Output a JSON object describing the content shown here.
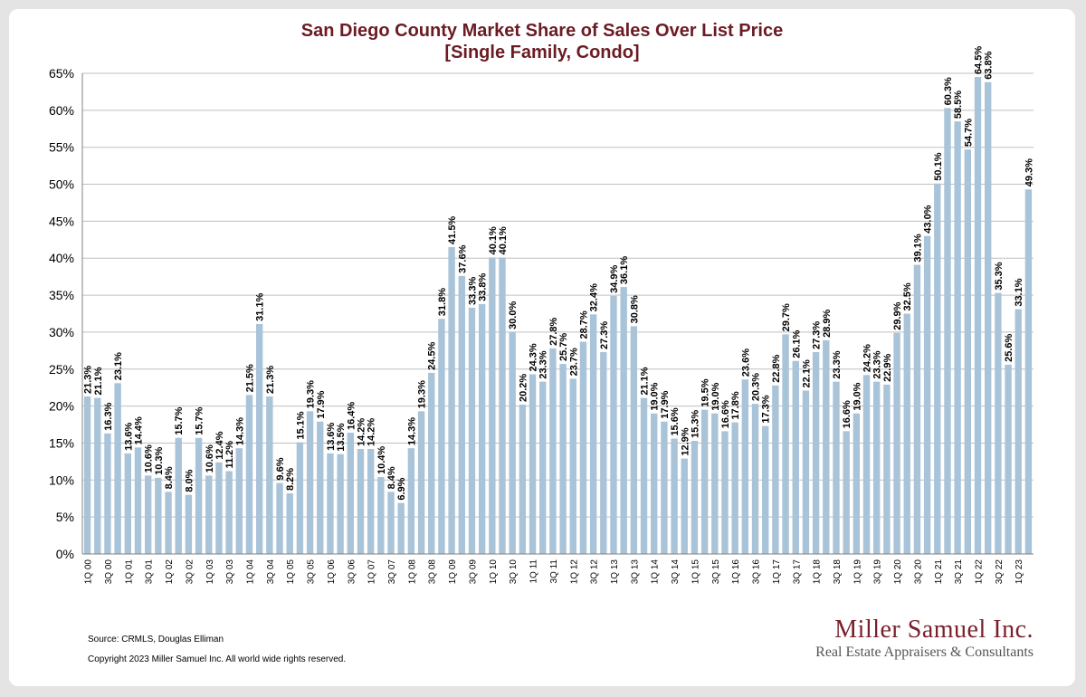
{
  "title": {
    "line1": "San Diego County Market Share of Sales Over List Price",
    "line2": "[Single Family, Condo]"
  },
  "footer": {
    "source": "Source: CRMLS, Douglas Elliman",
    "copyright": "Copyright 2023 Miller Samuel Inc.  All world wide rights reserved."
  },
  "brand": {
    "name": "Miller Samuel Inc.",
    "tagline": "Real Estate Appraisers & Consultants"
  },
  "colors": {
    "bar": "#a9c3d9",
    "title": "#6b1b23",
    "grid": "#bfbfbf"
  },
  "chart_data": {
    "type": "bar",
    "title": "San Diego County Market Share of Sales Over List Price [Single Family, Condo]",
    "ylim": [
      0,
      65
    ],
    "y_ticks": [
      "0%",
      "5%",
      "10%",
      "15%",
      "20%",
      "25%",
      "30%",
      "35%",
      "40%",
      "45%",
      "50%",
      "55%",
      "60%",
      "65%"
    ],
    "grid": true,
    "categories": [
      "1Q 00",
      "2Q 00",
      "3Q 00",
      "4Q 00",
      "1Q 01",
      "2Q 01",
      "3Q 01",
      "4Q 01",
      "1Q 02",
      "2Q 02",
      "3Q 02",
      "4Q 02",
      "1Q 03",
      "2Q 03",
      "3Q 03",
      "4Q 03",
      "1Q 04",
      "2Q 04",
      "3Q 04",
      "4Q 04",
      "1Q 05",
      "2Q 05",
      "3Q 05",
      "4Q 05",
      "1Q 06",
      "2Q 06",
      "3Q 06",
      "4Q 06",
      "1Q 07",
      "2Q 07",
      "3Q 07",
      "4Q 07",
      "1Q 08",
      "2Q 08",
      "3Q 08",
      "4Q 08",
      "1Q 09",
      "2Q 09",
      "3Q 09",
      "4Q 09",
      "1Q 10",
      "2Q 10",
      "3Q 10",
      "4Q 10",
      "1Q 11",
      "2Q 11",
      "3Q 11",
      "4Q 11",
      "1Q 12",
      "2Q 12",
      "3Q 12",
      "4Q 12",
      "1Q 13",
      "2Q 13",
      "3Q 13",
      "4Q 13",
      "1Q 14",
      "2Q 14",
      "3Q 14",
      "4Q 14",
      "1Q 15",
      "2Q 15",
      "3Q 15",
      "4Q 15",
      "1Q 16",
      "2Q 16",
      "3Q 16",
      "4Q 16",
      "1Q 17",
      "2Q 17",
      "3Q 17",
      "4Q 17",
      "1Q 18",
      "2Q 18",
      "3Q 18",
      "4Q 18",
      "1Q 19",
      "2Q 19",
      "3Q 19",
      "4Q 19",
      "1Q 20",
      "2Q 20",
      "3Q 20",
      "4Q 20",
      "1Q 21",
      "2Q 21",
      "3Q 21",
      "4Q 21",
      "1Q 22",
      "2Q 22",
      "3Q 22",
      "4Q 22",
      "1Q 23",
      "2Q 23"
    ],
    "values": [
      21.3,
      21.1,
      16.3,
      23.1,
      13.6,
      14.4,
      10.6,
      10.3,
      8.4,
      15.7,
      8.0,
      15.7,
      10.6,
      12.4,
      11.2,
      14.3,
      21.5,
      31.1,
      21.3,
      9.6,
      8.2,
      15.1,
      19.3,
      17.9,
      13.6,
      13.5,
      16.4,
      14.2,
      14.2,
      10.4,
      8.4,
      6.9,
      14.3,
      19.3,
      24.5,
      31.8,
      41.5,
      37.6,
      33.3,
      33.8,
      40.1,
      40.1,
      30.0,
      20.2,
      24.3,
      23.3,
      27.8,
      25.7,
      23.7,
      28.7,
      32.4,
      27.3,
      34.9,
      36.1,
      30.8,
      21.1,
      19.0,
      17.9,
      15.6,
      12.9,
      15.3,
      19.5,
      19.0,
      16.6,
      17.8,
      23.6,
      20.3,
      17.3,
      22.8,
      29.7,
      26.1,
      22.1,
      27.3,
      28.9,
      23.3,
      16.6,
      19.0,
      24.2,
      23.3,
      22.9,
      29.9,
      32.5,
      39.1,
      43.0,
      50.1,
      60.3,
      58.5,
      54.7,
      64.5,
      63.8,
      35.3,
      25.6,
      33.1,
      49.3
    ],
    "labels": [
      "21.3%",
      "21.1%",
      "16.3%",
      "23.1%",
      "13.6%",
      "14.4%",
      "10.6%",
      "10.3%",
      "8.4%",
      "15.7%",
      "8.0%",
      "15.7%",
      "10.6%",
      "12.4%",
      "11.2%",
      "14.3%",
      "21.5%",
      "31.1%",
      "21.3%",
      "9.6%",
      "8.2%",
      "15.1%",
      "19.3%",
      "17.9%",
      "13.6%",
      "13.5%",
      "16.4%",
      "14.2%",
      "14.2%",
      "10.4%",
      "8.4%",
      "6.9%",
      "14.3%",
      "19.3%",
      "24.5%",
      "31.8%",
      "41.5%",
      "37.6%",
      "33.3%",
      "33.8%",
      "40.1%",
      "40.1%",
      "30.0%",
      "20.2%",
      "24.3%",
      "23.3%",
      "27.8%",
      "25.7%",
      "23.7%",
      "28.7%",
      "32.4%",
      "27.3%",
      "34.9%",
      "36.1%",
      "30.8%",
      "21.1%",
      "19.0%",
      "17.9%",
      "15.6%",
      "12.9%",
      "15.3%",
      "19.5%",
      "19.0%",
      "16.6%",
      "17.8%",
      "23.6%",
      "20.3%",
      "17.3%",
      "22.8%",
      "29.7%",
      "26.1%",
      "22.1%",
      "27.3%",
      "28.9%",
      "23.3%",
      "16.6%",
      "19.0%",
      "24.2%",
      "23.3%",
      "22.9%",
      "29.9%",
      "32.5%",
      "39.1%",
      "43.0%",
      "50.1%",
      "60.3%",
      "58.5%",
      "54.7%",
      "64.5%",
      "63.8%",
      "35.3%",
      "25.6%",
      "33.1%",
      "49.3%"
    ],
    "x_tick_labels": [
      "1Q 00",
      "",
      "3Q 00",
      "",
      "1Q 01",
      "",
      "3Q 01",
      "",
      "1Q 02",
      "",
      "3Q 02",
      "",
      "1Q 03",
      "",
      "3Q 03",
      "",
      "1Q 04",
      "",
      "3Q 04",
      "",
      "1Q 05",
      "",
      "3Q 05",
      "",
      "1Q 06",
      "",
      "3Q 06",
      "",
      "1Q 07",
      "",
      "3Q 07",
      "",
      "1Q 08",
      "",
      "3Q 08",
      "",
      "1Q 09",
      "",
      "3Q 09",
      "",
      "1Q 10",
      "",
      "3Q 10",
      "",
      "1Q 11",
      "",
      "3Q 11",
      "",
      "1Q 12",
      "",
      "3Q 12",
      "",
      "1Q 13",
      "",
      "3Q 13",
      "",
      "1Q 14",
      "",
      "3Q 14",
      "",
      "1Q 15",
      "",
      "3Q 15",
      "",
      "1Q 16",
      "",
      "3Q 16",
      "",
      "1Q 17",
      "",
      "3Q 17",
      "",
      "1Q 18",
      "",
      "3Q 18",
      "",
      "1Q 19",
      "",
      "3Q 19",
      "",
      "1Q 20",
      "",
      "3Q 20",
      "",
      "1Q 21",
      "",
      "3Q 21",
      "",
      "1Q 22",
      "",
      "3Q 22",
      "",
      "1Q 23",
      ""
    ]
  }
}
